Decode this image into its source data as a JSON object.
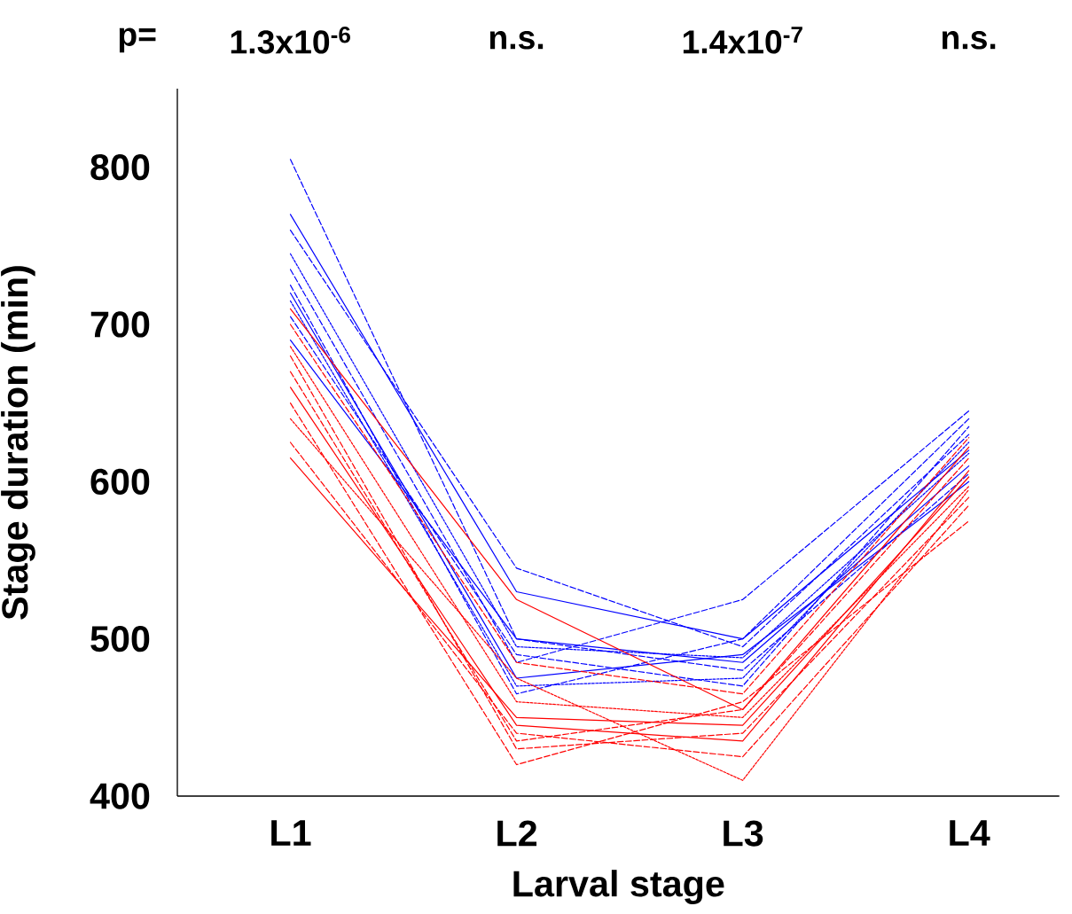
{
  "chart_data": {
    "type": "line",
    "xlabel": "Larval stage",
    "ylabel": "Stage duration (min)",
    "categories": [
      "L1",
      "L2",
      "L3",
      "L4"
    ],
    "ylim": [
      400,
      850
    ],
    "yticks": [
      400,
      500,
      600,
      700,
      800
    ],
    "grid": false,
    "marker": "none",
    "annotations": [
      "p=",
      "1.3x10$^{-6}$",
      "n.s.",
      "1.4x10$^{-7}$",
      "n.s."
    ],
    "series": [
      {
        "color": "#0000ff",
        "line_style": "dashed",
        "values": [
          805,
          500,
          480,
          605
        ]
      },
      {
        "color": "#0000ff",
        "line_style": "solid",
        "values": [
          770,
          530,
          500,
          620
        ]
      },
      {
        "color": "#0000ff",
        "line_style": "dashed",
        "values": [
          760,
          545,
          495,
          630
        ]
      },
      {
        "color": "#0000ff",
        "line_style": "dotted",
        "values": [
          745,
          495,
          488,
          618
        ]
      },
      {
        "color": "#0000ff",
        "line_style": "dashed",
        "values": [
          735,
          485,
          525,
          645
        ]
      },
      {
        "color": "#0000ff",
        "line_style": "solid",
        "values": [
          720,
          475,
          490,
          600
        ]
      },
      {
        "color": "#0000ff",
        "line_style": "dotted",
        "values": [
          715,
          470,
          475,
          625
        ]
      },
      {
        "color": "#0000ff",
        "line_style": "dashed",
        "values": [
          705,
          490,
          470,
          635
        ]
      },
      {
        "color": "#0000ff",
        "line_style": "solid",
        "values": [
          690,
          500,
          485,
          610
        ]
      },
      {
        "color": "#0000ff",
        "line_style": "dashed",
        "values": [
          725,
          465,
          500,
          640
        ]
      },
      {
        "color": "#ff0000",
        "line_style": "solid",
        "values": [
          710,
          525,
          455,
          622
        ]
      },
      {
        "color": "#ff0000",
        "line_style": "dashed",
        "values": [
          700,
          485,
          465,
          628
        ]
      },
      {
        "color": "#ff0000",
        "line_style": "dotted",
        "values": [
          686,
          460,
          450,
          597
        ]
      },
      {
        "color": "#ff0000",
        "line_style": "dashed",
        "values": [
          680,
          430,
          440,
          590
        ]
      },
      {
        "color": "#ff0000",
        "line_style": "solid",
        "values": [
          660,
          445,
          435,
          607
        ]
      },
      {
        "color": "#ff0000",
        "line_style": "dashed",
        "values": [
          650,
          420,
          460,
          575
        ]
      },
      {
        "color": "#ff0000",
        "line_style": "dotted",
        "values": [
          640,
          475,
          410,
          595
        ]
      },
      {
        "color": "#ff0000",
        "line_style": "dashed",
        "values": [
          625,
          440,
          425,
          585
        ]
      },
      {
        "color": "#ff0000",
        "line_style": "solid",
        "values": [
          615,
          450,
          445,
          603
        ]
      },
      {
        "color": "#ff0000",
        "line_style": "dashed",
        "values": [
          670,
          435,
          455,
          615
        ]
      }
    ]
  }
}
